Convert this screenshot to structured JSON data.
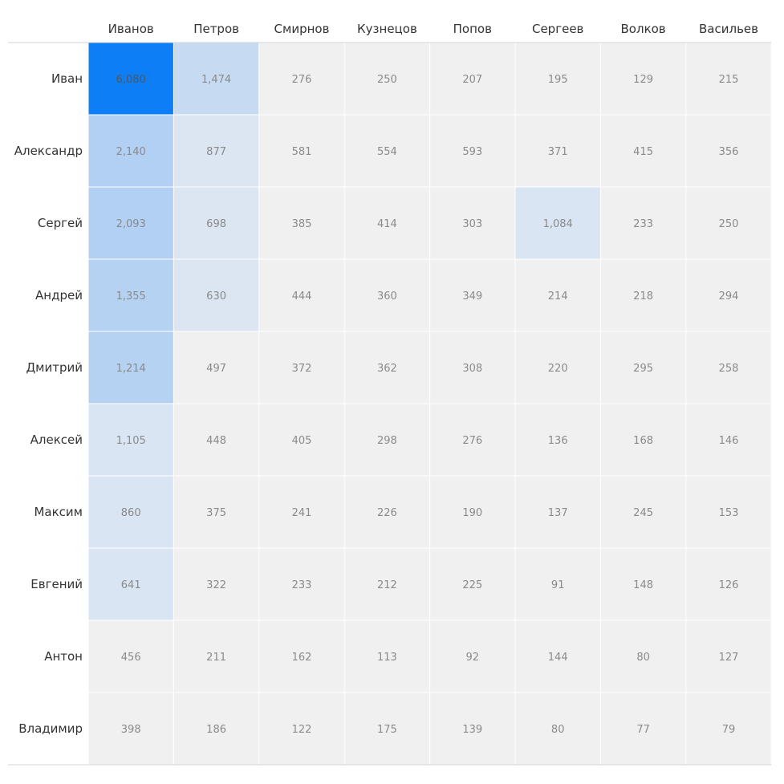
{
  "chart_data": {
    "type": "heatmap",
    "columns": [
      "Иванов",
      "Петров",
      "Смирнов",
      "Кузнецов",
      "Попов",
      "Сергеев",
      "Волков",
      "Васильев"
    ],
    "rows": [
      "Иван",
      "Александр",
      "Сергей",
      "Андрей",
      "Дмитрий",
      "Алексей",
      "Максим",
      "Евгений",
      "Антон",
      "Владимир"
    ],
    "values": [
      [
        6080,
        1474,
        276,
        250,
        207,
        195,
        129,
        215
      ],
      [
        2140,
        877,
        581,
        554,
        593,
        371,
        415,
        356
      ],
      [
        2093,
        698,
        385,
        414,
        303,
        1084,
        233,
        250
      ],
      [
        1355,
        630,
        444,
        360,
        349,
        214,
        218,
        294
      ],
      [
        1214,
        497,
        372,
        362,
        308,
        220,
        295,
        258
      ],
      [
        1105,
        448,
        405,
        298,
        276,
        136,
        168,
        146
      ],
      [
        860,
        375,
        241,
        226,
        190,
        137,
        245,
        153
      ],
      [
        641,
        322,
        233,
        212,
        225,
        91,
        148,
        126
      ],
      [
        456,
        211,
        162,
        113,
        92,
        144,
        80,
        127
      ],
      [
        398,
        186,
        122,
        175,
        139,
        80,
        77,
        79
      ]
    ],
    "value_labels": [
      [
        "6,080",
        "1,474",
        "276",
        "250",
        "207",
        "195",
        "129",
        "215"
      ],
      [
        "2,140",
        "877",
        "581",
        "554",
        "593",
        "371",
        "415",
        "356"
      ],
      [
        "2,093",
        "698",
        "385",
        "414",
        "303",
        "1,084",
        "233",
        "250"
      ],
      [
        "1,355",
        "630",
        "444",
        "360",
        "349",
        "214",
        "218",
        "294"
      ],
      [
        "1,214",
        "497",
        "372",
        "362",
        "308",
        "220",
        "295",
        "258"
      ],
      [
        "1,105",
        "448",
        "405",
        "298",
        "276",
        "136",
        "168",
        "146"
      ],
      [
        "860",
        "375",
        "241",
        "226",
        "190",
        "137",
        "245",
        "153"
      ],
      [
        "641",
        "322",
        "233",
        "212",
        "225",
        "91",
        "148",
        "126"
      ],
      [
        "456",
        "211",
        "162",
        "113",
        "92",
        "144",
        "80",
        "127"
      ],
      [
        "398",
        "186",
        "122",
        "175",
        "139",
        "80",
        "77",
        "79"
      ]
    ],
    "color_bins": [
      {
        "min": 5000,
        "color": "#0d7ef5"
      },
      {
        "min": 1400,
        "color": "#c6dbf1"
      },
      {
        "min": 1150,
        "color": "#b2d0f4"
      },
      {
        "min": 600,
        "color": "#d9e5f3"
      },
      {
        "min": 0,
        "color": "#f0f0f0"
      }
    ],
    "strong_color_by_column": {
      "0": [
        {
          "min": 2000,
          "color": "#b2d0f4"
        },
        {
          "min": 1150,
          "color": "#b6d2f3"
        },
        {
          "min": 600,
          "color": "#d9e5f3"
        }
      ],
      "1": [
        {
          "min": 1400,
          "color": "#c6dbf1"
        },
        {
          "min": 600,
          "color": "#dce6f2"
        }
      ],
      "5": [
        {
          "min": 1000,
          "color": "#d9e5f3"
        }
      ]
    },
    "xlabel": "",
    "ylabel": "",
    "title": "",
    "grid": true
  }
}
